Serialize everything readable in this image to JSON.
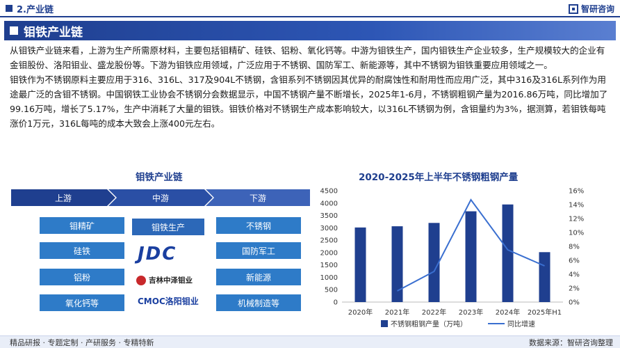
{
  "header": {
    "section": "2.产业链",
    "brand": "智研咨询"
  },
  "banner": {
    "title": "钼铁产业链"
  },
  "body": {
    "p1": "从钼铁产业链来看，上游为生产所需原材料，主要包括钼精矿、硅铁、铝粉、氧化钙等。中游为钼铁生产，国内钼铁生产企业较多，生产规模较大的企业有金钼股份、洛阳钼业、盛龙股份等。下游为钼铁应用领域，广泛应用于不锈钢、国防军工、新能源等，其中不锈钢为钼铁重要应用领域之一。",
    "p2": "钼铁作为不锈钢原料主要应用于316、316L、317及904L不锈钢，含钼系列不锈钢因其优异的耐腐蚀性和耐用性而应用广泛，其中316及316L系列作为用途最广泛的含钼不锈钢。中国钢铁工业协会不锈钢分会数据显示，中国不锈钢产量不断增长，2025年1-6月，不锈钢粗钢产量为2016.86万吨，同比增加了99.16万吨，增长了5.17%，生产中消耗了大量的钼铁。钼铁价格对不锈钢生产成本影响较大，以316L不锈钢为例，含钼量约为3%，据测算，若钼铁每吨涨价1万元，316L每吨的成本大致会上涨400元左右。"
  },
  "diagram": {
    "title": "钼铁产业链",
    "stages": [
      "上游",
      "中游",
      "下游"
    ],
    "upstream": [
      "钼精矿",
      "硅铁",
      "铝粉",
      "氧化钙等"
    ],
    "midstream": [
      "钼铁生产"
    ],
    "downstream": [
      "不锈钢",
      "国防军工",
      "新能源",
      "机械制造等"
    ],
    "logos": {
      "jdc": "JDC",
      "jilin": "吉林中泽钼业",
      "cmoc": "CMOC洛阳钼业"
    }
  },
  "chart_data": {
    "type": "bar",
    "title": "2020-2025年上半年不锈钢粗钢产量",
    "categories": [
      "2020年",
      "2021年",
      "2022年",
      "2023年",
      "2024年",
      "2025年H1"
    ],
    "series": [
      {
        "name": "不锈钢粗钢产量（万吨）",
        "type": "bar",
        "values": [
          3014,
          3063,
          3198,
          3668,
          3944,
          2017
        ],
        "axis": "left",
        "color": "#1f3f8f"
      },
      {
        "name": "同比增速",
        "type": "line",
        "values": [
          null,
          1.6,
          4.4,
          14.7,
          7.5,
          5.2
        ],
        "axis": "right",
        "color": "#3a6fd0"
      }
    ],
    "ylim_left": [
      0,
      4500
    ],
    "ylim_right": [
      0,
      16
    ],
    "left_ticks": [
      0,
      500,
      1000,
      1500,
      2000,
      2500,
      3000,
      3500,
      4000,
      4500
    ],
    "right_ticks": [
      "0%",
      "2%",
      "4%",
      "6%",
      "8%",
      "10%",
      "12%",
      "14%",
      "16%"
    ],
    "grid": false,
    "legend": "bottom"
  },
  "footer": {
    "left": "精品研报 · 专题定制 · 产研服务 · 专精特新",
    "right": "数据来源：智研咨询整理"
  },
  "colors": {
    "primary": "#1f3f8f",
    "box": "#2e7bc8"
  }
}
